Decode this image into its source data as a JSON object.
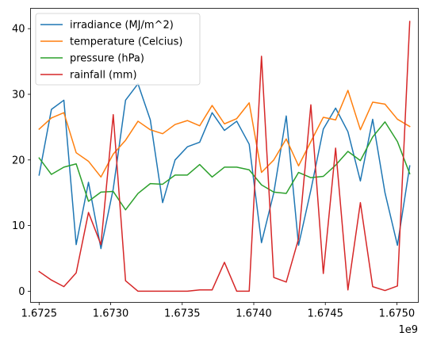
{
  "chart_data": {
    "type": "line",
    "title": "",
    "xlabel": "",
    "ylabel": "",
    "x_offset_label": "1e9",
    "xlim": [
      1.67244,
      1.67515
    ],
    "ylim": [
      -1.7,
      43.1
    ],
    "xticks": [
      1.6725,
      1.673,
      1.6735,
      1.674,
      1.6745,
      1.675
    ],
    "xtick_labels": [
      "1.6725",
      "1.6730",
      "1.6735",
      "1.6740",
      "1.6745",
      "1.6750"
    ],
    "yticks": [
      0,
      10,
      20,
      30,
      40
    ],
    "ytick_labels": [
      "0",
      "10",
      "20",
      "30",
      "40"
    ],
    "grid": false,
    "legend_position": "top-left",
    "x": [
      1.6725,
      1.67252,
      1.67254,
      1.67255,
      1.67257,
      1.67259,
      1.67261,
      1.67262,
      1.67264,
      1.67266,
      1.67268,
      1.67269,
      1.67271,
      1.67273,
      1.67275,
      1.67276,
      1.67278,
      1.6728,
      1.67282,
      1.67283,
      1.67285,
      1.67287,
      1.67289,
      1.6729,
      1.67292,
      1.67294,
      1.67296,
      1.67297,
      1.67299,
      1.67301,
      1.67303,
      1.67304,
      1.67306,
      1.67308,
      1.6731,
      1.67311,
      1.67313,
      1.67315,
      1.67317,
      1.67318,
      1.6732,
      1.67322,
      1.67324,
      1.67325,
      1.67327,
      1.67329,
      1.67331,
      1.67332,
      1.67334,
      1.67336,
      1.67338,
      1.67339,
      1.67341,
      1.67343,
      1.67345,
      1.67346,
      1.67348,
      1.6735,
      1.67352,
      1.67353,
      1.67355,
      1.67357,
      1.67359,
      1.6736,
      1.67362,
      1.67364,
      1.67366,
      1.67367,
      1.67369,
      1.67371,
      1.67373,
      1.67374,
      1.67376,
      1.67378,
      1.6738,
      1.67381,
      1.67383,
      1.67385,
      1.67387,
      1.67388,
      1.6739,
      1.67392,
      1.67394,
      1.67395,
      1.67397,
      1.67399,
      1.67401,
      1.67402,
      1.67404,
      1.67406,
      1.67408,
      1.67409,
      1.67411,
      1.67413,
      1.67415,
      1.67416,
      1.67418,
      1.6742,
      1.67422,
      1.67423,
      1.67425,
      1.67427,
      1.67429,
      1.6743,
      1.67432,
      1.67434,
      1.67436,
      1.67437,
      1.67439,
      1.67441,
      1.67443,
      1.67444,
      1.67446,
      1.67448,
      1.6745,
      1.67451,
      1.67453,
      1.67455,
      1.67457,
      1.67458,
      1.6746,
      1.67462,
      1.67464,
      1.67465,
      1.67467,
      1.67469,
      1.67471,
      1.67472,
      1.67474,
      1.67476,
      1.67478,
      1.67479,
      1.67481,
      1.67483,
      1.67485,
      1.67486,
      1.67488,
      1.6749,
      1.67492,
      1.67493,
      1.67495,
      1.67497,
      1.67499,
      1.675,
      1.67502,
      1.67504,
      1.67506,
      1.67507,
      1.67509
    ],
    "series": []
  },
  "legend": {
    "entries": [
      {
        "label": "irradiance (MJ/m^2)",
        "color": "#1f77b4"
      },
      {
        "label": "temperature (Celcius)",
        "color": "#ff7f0e"
      },
      {
        "label": "pressure (hPa)",
        "color": "#2ca02c"
      },
      {
        "label": "rainfall (mm)",
        "color": "#d62728"
      }
    ]
  }
}
